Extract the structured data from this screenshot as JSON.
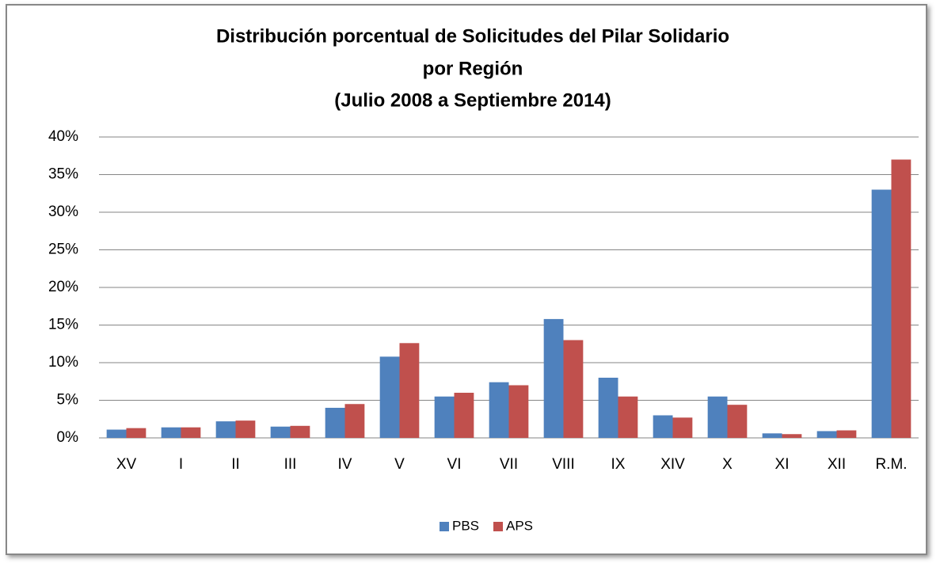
{
  "chart_data": {
    "type": "bar",
    "title": [
      "Distribución porcentual de Solicitudes del Pilar Solidario",
      "por Región",
      "(Julio 2008 a Septiembre 2014)"
    ],
    "categories": [
      "XV",
      "I",
      "II",
      "III",
      "IV",
      "V",
      "VI",
      "VII",
      "VIII",
      "IX",
      "XIV",
      "X",
      "XI",
      "XII",
      "R.M."
    ],
    "series": [
      {
        "name": "PBS",
        "color": "#4f81bd",
        "values": [
          1.1,
          1.4,
          2.2,
          1.5,
          4.0,
          10.8,
          5.5,
          7.4,
          15.8,
          8.0,
          3.0,
          5.5,
          0.6,
          0.9,
          33.0
        ]
      },
      {
        "name": "APS",
        "color": "#c0504d",
        "values": [
          1.3,
          1.4,
          2.3,
          1.6,
          4.5,
          12.6,
          6.0,
          7.0,
          13.0,
          5.5,
          2.7,
          4.4,
          0.5,
          1.0,
          37.0
        ]
      }
    ],
    "ylim": [
      0,
      40
    ],
    "yticks": [
      {
        "value": 0,
        "label": "0%"
      },
      {
        "value": 5,
        "label": "5%"
      },
      {
        "value": 10,
        "label": "10%"
      },
      {
        "value": 15,
        "label": "15%"
      },
      {
        "value": 20,
        "label": "20%"
      },
      {
        "value": 25,
        "label": "25%"
      },
      {
        "value": 30,
        "label": "30%"
      },
      {
        "value": 35,
        "label": "35%"
      },
      {
        "value": 40,
        "label": "40%"
      }
    ],
    "grid": true,
    "legend": "bottom"
  }
}
